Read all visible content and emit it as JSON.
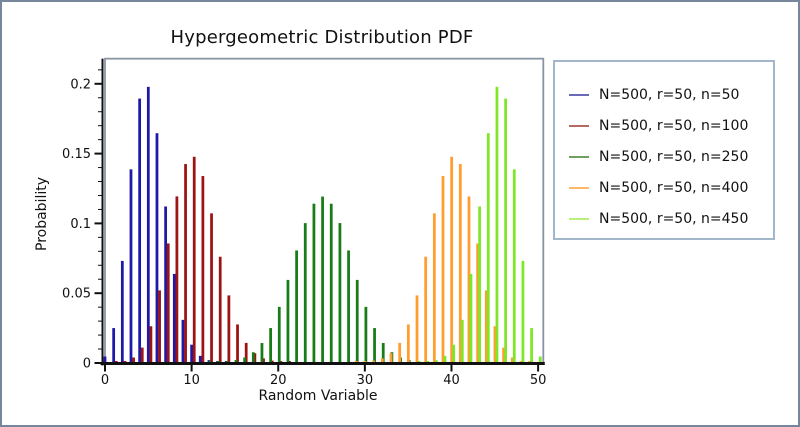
{
  "window": {
    "background": "#ffffff",
    "border_color": "#76879b"
  },
  "chart_data": {
    "type": "bar",
    "title": "Hypergeometric Distribution PDF",
    "xlabel": "Random Variable",
    "ylabel": "Probability",
    "xlim": [
      0,
      50.6
    ],
    "ylim": [
      0,
      0.218
    ],
    "x_ticks": [
      0,
      10,
      20,
      30,
      40,
      50
    ],
    "y_ticks": [
      {
        "v": 0,
        "label": "0"
      },
      {
        "v": 0.05,
        "label": "0.05"
      },
      {
        "v": 0.1,
        "label": "0.1"
      },
      {
        "v": 0.15,
        "label": "0.15"
      },
      {
        "v": 0.2,
        "label": "0.2"
      }
    ],
    "y_minor_step": 0.01,
    "grid": false,
    "legend_position": "right",
    "bar_width_units": 0.32,
    "frame_color": "#8a94a2",
    "axis_color": "#111111",
    "series": [
      {
        "name": "N=500, r=50, n=50",
        "color": "#1e19a6",
        "legend_color": "#6a6ab8",
        "offset": 0.0,
        "points": [
          [
            0,
            0.0039
          ],
          [
            1,
            0.0243
          ],
          [
            2,
            0.0724
          ],
          [
            3,
            0.138
          ],
          [
            4,
            0.1887
          ],
          [
            5,
            0.1971
          ],
          [
            6,
            0.1639
          ],
          [
            7,
            0.1114
          ],
          [
            8,
            0.0631
          ],
          [
            9,
            0.0302
          ],
          [
            10,
            0.0124
          ],
          [
            11,
            0.0044
          ],
          [
            12,
            0.0013
          ],
          [
            13,
            0.0004
          ],
          [
            14,
            0.0001
          ]
        ]
      },
      {
        "name": "N=500, r=50, n=100",
        "color": "#9d1414",
        "legend_color": "#b66a62",
        "offset": 0.3,
        "points": [
          [
            1,
            0.0001
          ],
          [
            2,
            0.0007
          ],
          [
            3,
            0.0032
          ],
          [
            4,
            0.0103
          ],
          [
            5,
            0.0256
          ],
          [
            6,
            0.0513
          ],
          [
            7,
            0.0849
          ],
          [
            8,
            0.1186
          ],
          [
            9,
            0.1418
          ],
          [
            10,
            0.147
          ],
          [
            11,
            0.1332
          ],
          [
            12,
            0.1065
          ],
          [
            13,
            0.0754
          ],
          [
            14,
            0.0477
          ],
          [
            15,
            0.0269
          ],
          [
            16,
            0.0137
          ],
          [
            17,
            0.0063
          ],
          [
            18,
            0.0026
          ],
          [
            19,
            0.001
          ],
          [
            20,
            0.0003
          ],
          [
            21,
            0.0001
          ]
        ]
      },
      {
        "name": "N=500, r=50, n=250",
        "color": "#187d18",
        "legend_color": "#6fa05f",
        "offset": 0.12,
        "points": [
          [
            12,
            0.0001
          ],
          [
            13,
            0.0002
          ],
          [
            14,
            0.0005
          ],
          [
            15,
            0.0014
          ],
          [
            16,
            0.0032
          ],
          [
            17,
            0.007
          ],
          [
            18,
            0.0136
          ],
          [
            19,
            0.0243
          ],
          [
            20,
            0.0395
          ],
          [
            21,
            0.0588
          ],
          [
            22,
            0.0799
          ],
          [
            23,
            0.0995
          ],
          [
            24,
            0.1134
          ],
          [
            25,
            0.1185
          ],
          [
            26,
            0.1134
          ],
          [
            27,
            0.0995
          ],
          [
            28,
            0.0799
          ],
          [
            29,
            0.0588
          ],
          [
            30,
            0.0395
          ],
          [
            31,
            0.0243
          ],
          [
            32,
            0.0136
          ],
          [
            33,
            0.007
          ],
          [
            34,
            0.0032
          ],
          [
            35,
            0.0014
          ],
          [
            36,
            0.0005
          ],
          [
            37,
            0.0002
          ],
          [
            38,
            0.0001
          ]
        ]
      },
      {
        "name": "N=500, r=50, n=400",
        "color": "#ff9d2e",
        "legend_color": "#ffb869",
        "offset": 0.02,
        "points": [
          [
            29,
            0.0001
          ],
          [
            30,
            0.0003
          ],
          [
            31,
            0.001
          ],
          [
            32,
            0.0026
          ],
          [
            33,
            0.0063
          ],
          [
            34,
            0.0137
          ],
          [
            35,
            0.0269
          ],
          [
            36,
            0.0477
          ],
          [
            37,
            0.0754
          ],
          [
            38,
            0.1065
          ],
          [
            39,
            0.1332
          ],
          [
            40,
            0.147
          ],
          [
            41,
            0.1418
          ],
          [
            42,
            0.1186
          ],
          [
            43,
            0.0849
          ],
          [
            44,
            0.0513
          ],
          [
            45,
            0.0256
          ],
          [
            46,
            0.0103
          ],
          [
            47,
            0.0032
          ],
          [
            48,
            0.0007
          ],
          [
            49,
            0.0001
          ]
        ]
      },
      {
        "name": "N=500, r=50, n=450",
        "color": "#7ee827",
        "legend_color": "#b8f07a",
        "offset": 0.25,
        "points": [
          [
            36,
            0.0001
          ],
          [
            37,
            0.0004
          ],
          [
            38,
            0.0013
          ],
          [
            39,
            0.0044
          ],
          [
            40,
            0.0124
          ],
          [
            41,
            0.0302
          ],
          [
            42,
            0.0631
          ],
          [
            43,
            0.1114
          ],
          [
            44,
            0.1639
          ],
          [
            45,
            0.1971
          ],
          [
            46,
            0.1887
          ],
          [
            47,
            0.138
          ],
          [
            48,
            0.0724
          ],
          [
            49,
            0.0243
          ],
          [
            50,
            0.0039
          ]
        ]
      }
    ]
  }
}
